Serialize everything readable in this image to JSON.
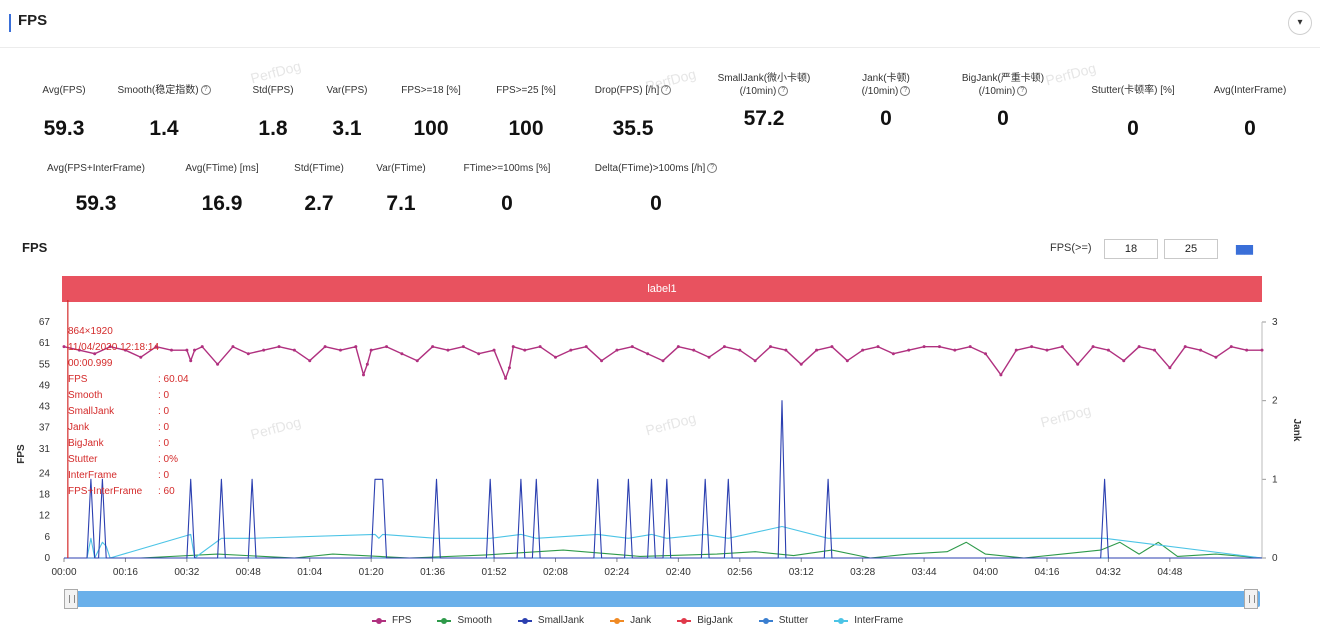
{
  "panel": {
    "title": "FPS",
    "collapse_icon": "chevron-down-icon",
    "collapse_glyph": "▾"
  },
  "watermark_text": "PerfDog",
  "metrics_row1": [
    {
      "label": "Avg(FPS)",
      "value": "59.3",
      "help": false
    },
    {
      "label": "Smooth(稳定指数)",
      "value": "1.4",
      "help": true
    },
    {
      "label": "Std(FPS)",
      "value": "1.8",
      "help": false
    },
    {
      "label": "Var(FPS)",
      "value": "3.1",
      "help": false
    },
    {
      "label": "FPS>=18 [%]",
      "value": "100",
      "help": false
    },
    {
      "label": "FPS>=25 [%]",
      "value": "100",
      "help": false
    },
    {
      "label": "Drop(FPS) [/h]",
      "value": "35.5",
      "help": true
    },
    {
      "label": "SmallJank(微小卡顿)",
      "label2": "(/10min)",
      "value": "57.2",
      "help": true
    },
    {
      "label": "Jank(卡顿)",
      "label2": "(/10min)",
      "value": "0",
      "help": true
    },
    {
      "label": "BigJank(严重卡顿)",
      "label2": "(/10min)",
      "value": "0",
      "help": true
    },
    {
      "label": "Stutter(卡顿率) [%]",
      "value": "0",
      "help": false
    },
    {
      "label": "Avg(InterFrame)",
      "value": "0",
      "help": false
    }
  ],
  "metrics_row2": [
    {
      "label": "Avg(FPS+InterFrame)",
      "value": "59.3",
      "help": false
    },
    {
      "label": "Avg(FTime) [ms]",
      "value": "16.9",
      "help": false
    },
    {
      "label": "Std(FTime)",
      "value": "2.7",
      "help": false
    },
    {
      "label": "Var(FTime)",
      "value": "7.1",
      "help": false
    },
    {
      "label": "FTime>=100ms [%]",
      "value": "0",
      "help": false
    },
    {
      "label": "Delta(FTime)>100ms [/h]",
      "value": "0",
      "help": true
    }
  ],
  "chart_section": {
    "title": "FPS",
    "threshold_label": "FPS(>=)",
    "threshold_low": "18",
    "threshold_high": "25",
    "apply_icon": "bar-chart-icon",
    "apply_glyph": "▆▆",
    "label_band": "label1"
  },
  "info_box": {
    "resolution": "864×1920",
    "datetime": "11/04/2020 12:18:14",
    "time": "00:00.999",
    "rows": [
      {
        "key": "FPS",
        "val": ": 60.04"
      },
      {
        "key": "Smooth",
        "val": ": 0"
      },
      {
        "key": "SmallJank",
        "val": ": 0"
      },
      {
        "key": "Jank",
        "val": ": 0"
      },
      {
        "key": "BigJank",
        "val": ": 0"
      },
      {
        "key": "Stutter",
        "val": ": 0%"
      },
      {
        "key": "InterFrame",
        "val": ": 0"
      },
      {
        "key": "FPS+InterFrame",
        "val": ": 60"
      }
    ]
  },
  "colors": {
    "fps": "#b0307f",
    "smooth": "#2e9a4a",
    "smalljank": "#2b3fb0",
    "jank": "#f08a24",
    "bigjank": "#e0394a",
    "stutter": "#3a7fd0",
    "interframe": "#4cc4e6",
    "band": "#e8525f",
    "cursor": "#d42b2b"
  },
  "chart_data": {
    "type": "line",
    "title": "FPS",
    "ylabel_left": "FPS",
    "ylabel_right": "Jank",
    "ylim_left": [
      0,
      67
    ],
    "ylim_right": [
      0,
      3
    ],
    "yticks_left": [
      "0",
      "6",
      "12",
      "18",
      "24",
      "31",
      "37",
      "43",
      "49",
      "55",
      "61",
      "67"
    ],
    "yticks_right": [
      "0",
      "1",
      "2",
      "3"
    ],
    "xlim_seconds": [
      0,
      312
    ],
    "xticks": [
      "00:00",
      "00:16",
      "00:32",
      "00:48",
      "01:04",
      "01:20",
      "01:36",
      "01:52",
      "02:08",
      "02:24",
      "02:40",
      "02:56",
      "03:12",
      "03:28",
      "03:44",
      "04:00",
      "04:16",
      "04:32",
      "04:48"
    ],
    "series": [
      {
        "name": "FPS",
        "axis": "left",
        "x": [
          0,
          4,
          8,
          12,
          16,
          20,
          24,
          28,
          32,
          33,
          34,
          36,
          40,
          44,
          48,
          52,
          56,
          60,
          64,
          68,
          72,
          76,
          78,
          79,
          80,
          84,
          88,
          92,
          96,
          100,
          104,
          108,
          112,
          115,
          116,
          117,
          120,
          124,
          128,
          132,
          136,
          140,
          144,
          148,
          152,
          156,
          160,
          164,
          168,
          172,
          176,
          180,
          184,
          188,
          192,
          196,
          200,
          204,
          208,
          212,
          216,
          220,
          224,
          228,
          232,
          236,
          240,
          244,
          248,
          252,
          256,
          260,
          264,
          268,
          272,
          276,
          280,
          284,
          288,
          292,
          296,
          300,
          304,
          308,
          312
        ],
        "values": [
          60,
          59,
          58,
          60,
          59,
          57,
          60,
          59,
          59,
          56,
          59,
          60,
          55,
          60,
          58,
          59,
          60,
          59,
          56,
          60,
          59,
          60,
          52,
          55,
          59,
          60,
          58,
          56,
          60,
          59,
          60,
          58,
          59,
          51,
          54,
          60,
          59,
          60,
          57,
          59,
          60,
          56,
          59,
          60,
          58,
          56,
          60,
          59,
          57,
          60,
          59,
          56,
          60,
          59,
          55,
          59,
          60,
          56,
          59,
          60,
          58,
          59,
          60,
          60,
          59,
          60,
          58,
          52,
          59,
          60,
          59,
          60,
          55,
          60,
          59,
          56,
          60,
          59,
          54,
          60,
          59,
          57,
          60,
          59,
          59
        ]
      },
      {
        "name": "SmallJank",
        "axis": "right",
        "x": [
          0,
          6,
          7,
          8,
          9,
          10,
          11,
          12,
          32,
          33,
          34,
          40,
          41,
          42,
          48,
          49,
          50,
          80,
          81,
          82,
          83,
          84,
          96,
          97,
          98,
          110,
          111,
          112,
          118,
          119,
          120,
          122,
          123,
          124,
          138,
          139,
          140,
          146,
          147,
          148,
          152,
          153,
          154,
          156,
          157,
          158,
          166,
          167,
          168,
          172,
          173,
          174,
          186,
          187,
          188,
          198,
          199,
          200,
          270,
          271,
          272,
          312
        ],
        "values": [
          0,
          0,
          1,
          0,
          0,
          1,
          0,
          0,
          0,
          1,
          0,
          0,
          1,
          0,
          0,
          1,
          0,
          0,
          1,
          1,
          1,
          0,
          0,
          1,
          0,
          0,
          1,
          0,
          0,
          1,
          0,
          0,
          1,
          0,
          0,
          1,
          0,
          0,
          1,
          0,
          0,
          1,
          0,
          0,
          1,
          0,
          0,
          1,
          0,
          0,
          1,
          0,
          0,
          2,
          0,
          0,
          1,
          0,
          0,
          1,
          0,
          0
        ]
      },
      {
        "name": "InterFrame",
        "axis": "right",
        "x": [
          0,
          6,
          7,
          8,
          10,
          11,
          12,
          33,
          34,
          41,
          49,
          81,
          82,
          83,
          97,
          111,
          119,
          123,
          139,
          147,
          153,
          157,
          167,
          173,
          187,
          199,
          271,
          312
        ],
        "values": [
          0,
          0,
          0.25,
          0,
          0.2,
          0.15,
          0,
          0.3,
          0,
          0.25,
          0.25,
          0.3,
          0.25,
          0.3,
          0.25,
          0.25,
          0.3,
          0.25,
          0.3,
          0.25,
          0.3,
          0.25,
          0.3,
          0.25,
          0.4,
          0.25,
          0.25,
          0
        ]
      },
      {
        "name": "Smooth",
        "axis": "right",
        "x": [
          0,
          20,
          40,
          60,
          70,
          90,
          110,
          130,
          150,
          170,
          180,
          190,
          200,
          210,
          220,
          230,
          235,
          240,
          250,
          260,
          270,
          275,
          280,
          285,
          290,
          300,
          312
        ],
        "values": [
          0,
          0,
          0.05,
          0,
          0.05,
          0,
          0.04,
          0.1,
          0.02,
          0.05,
          0.08,
          0.03,
          0.1,
          0,
          0.05,
          0.08,
          0.2,
          0.05,
          0,
          0.05,
          0.1,
          0.2,
          0.05,
          0.2,
          0.02,
          0.05,
          0
        ]
      },
      {
        "name": "Jank",
        "axis": "right",
        "x": [
          0,
          312
        ],
        "values": [
          0,
          0
        ]
      },
      {
        "name": "BigJank",
        "axis": "right",
        "x": [
          0,
          312
        ],
        "values": [
          0,
          0
        ]
      },
      {
        "name": "Stutter",
        "axis": "right",
        "x": [
          0,
          312
        ],
        "values": [
          0,
          0
        ]
      }
    ],
    "legend": [
      "FPS",
      "Smooth",
      "SmallJank",
      "Jank",
      "BigJank",
      "Stutter",
      "InterFrame"
    ],
    "legend_position": "bottom-center",
    "cursor_x_seconds": 1
  }
}
